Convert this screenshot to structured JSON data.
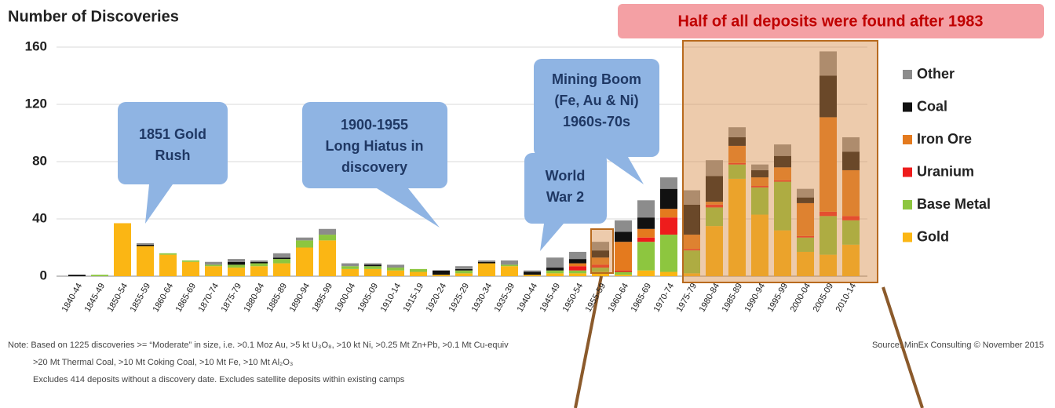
{
  "chart_data": {
    "type": "bar",
    "stacked": true,
    "title": "Number of Discoveries",
    "banner": "Half of all deposits were found after 1983",
    "callouts": [
      {
        "lines": [
          "1851 Gold",
          "Rush"
        ]
      },
      {
        "lines": [
          "1900-1955",
          "Long Hiatus in",
          "discovery"
        ]
      },
      {
        "lines": [
          "World",
          "War 2"
        ]
      },
      {
        "lines": [
          "Mining Boom",
          "(Fe, Au & Ni)",
          "1960s-70s"
        ]
      }
    ],
    "note": [
      "Note: Based on 1225 discoveries >= “Moderate” in size, i.e.  >0.1 Moz Au,  >5 kt U₃O₈,   >10 kt Ni, >0.25 Mt Zn+Pb, >0.1 Mt Cu-equiv",
      ">20 Mt Thermal Coal, >10 Mt Coking Coal, >10 Mt Fe, >10 Mt Al₂O₃",
      "Excludes 414 deposits without a  discovery date. Excludes  satellite deposits within existing camps"
    ],
    "source": "Source: MinEx Consulting ©  November 2015",
    "categories": [
      "1840-44",
      "1845-49",
      "1850-54",
      "1855-59",
      "1860-64",
      "1865-69",
      "1870-74",
      "1875-79",
      "1880-84",
      "1885-89",
      "1890-94",
      "1895-99",
      "1900-04",
      "1905-09",
      "1910-14",
      "1915-19",
      "1920-24",
      "1925-29",
      "1930-34",
      "1935-39",
      "1940-44",
      "1945-49",
      "1950-54",
      "1955-59",
      "1960-64",
      "1965-69",
      "1970-74",
      "1975-79",
      "1980-84",
      "1985-89",
      "1990-94",
      "1995-99",
      "2000-04",
      "2005-09",
      "2010-14"
    ],
    "series": [
      {
        "name": "Gold",
        "color": "#fbb614",
        "values": [
          0,
          0,
          37,
          21,
          15,
          10,
          7,
          6,
          7,
          9,
          20,
          25,
          5,
          5,
          4,
          3,
          1,
          2,
          9,
          7,
          1,
          2,
          2,
          3,
          1,
          4,
          3,
          2,
          35,
          68,
          43,
          32,
          17,
          15,
          22
        ]
      },
      {
        "name": "Base Metal",
        "color": "#8dc63f",
        "values": [
          0,
          1,
          0,
          0,
          1,
          1,
          1,
          2,
          2,
          3,
          5,
          4,
          2,
          2,
          2,
          2,
          0,
          2,
          0,
          1,
          0,
          2,
          2,
          3,
          2,
          20,
          26,
          16,
          13,
          10,
          19,
          34,
          10,
          27,
          17
        ]
      },
      {
        "name": "Uranium",
        "color": "#ee1c1c",
        "values": [
          0,
          0,
          0,
          0,
          0,
          0,
          0,
          0,
          0,
          0,
          0,
          0,
          0,
          0,
          0,
          0,
          0,
          0,
          0,
          0,
          0,
          0,
          3,
          2,
          1,
          3,
          12,
          1,
          2,
          1,
          1,
          1,
          1,
          3,
          3
        ]
      },
      {
        "name": "Iron Ore",
        "color": "#e47a1e",
        "values": [
          0,
          0,
          0,
          0,
          0,
          0,
          0,
          0,
          0,
          0,
          0,
          0,
          0,
          0,
          0,
          0,
          0,
          0,
          0,
          0,
          0,
          0,
          2,
          5,
          20,
          6,
          6,
          10,
          2,
          12,
          6,
          9,
          23,
          66,
          32
        ]
      },
      {
        "name": "Coal",
        "color": "#111111",
        "values": [
          1,
          0,
          0,
          1,
          0,
          0,
          0,
          2,
          1,
          1,
          0,
          0,
          0,
          1,
          0,
          0,
          3,
          1,
          1,
          0,
          2,
          2,
          3,
          5,
          7,
          8,
          14,
          21,
          18,
          6,
          5,
          8,
          4,
          29,
          13
        ]
      },
      {
        "name": "Other",
        "color": "#8c8c8c",
        "values": [
          0,
          0,
          0,
          1,
          0,
          0,
          2,
          2,
          1,
          3,
          2,
          4,
          2,
          1,
          2,
          0,
          0,
          2,
          1,
          3,
          1,
          7,
          5,
          6,
          8,
          12,
          8,
          10,
          11,
          7,
          4,
          8,
          6,
          17,
          10
        ]
      }
    ],
    "ylim": [
      0,
      160
    ],
    "yticks": [
      0,
      40,
      80,
      120,
      160
    ],
    "grid": true
  }
}
